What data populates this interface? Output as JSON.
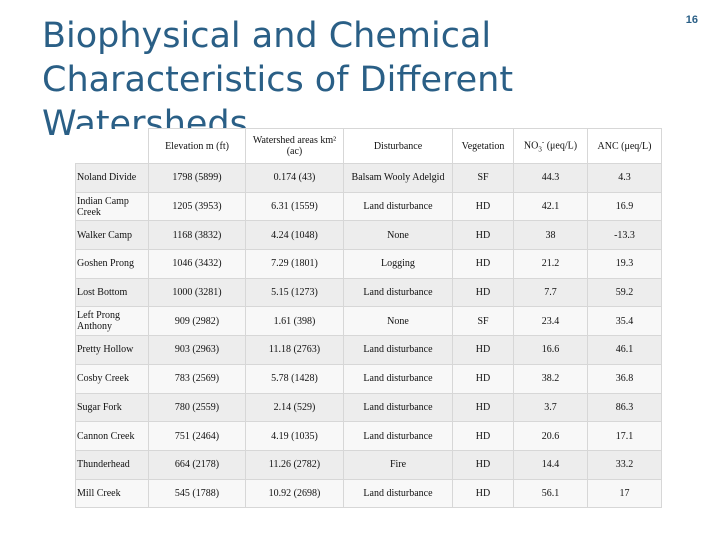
{
  "title": {
    "line1": "Biophysical and Chemical",
    "line2": "Characteristics of  Different Watersheds"
  },
  "page_number": "16",
  "table": {
    "headers": {
      "elevation": "Elevation m (ft)",
      "area": "Watershed areas km² (ac)",
      "disturbance": "Disturbance",
      "vegetation": "Vegetation",
      "no3_main": "NO",
      "no3_sub": "3",
      "no3_sup": "-",
      "no3_unit": " (μeq/L)",
      "anc": "ANC (μeq/L)"
    },
    "rows": [
      {
        "name": "Noland Divide",
        "elevation": "1798 (5899)",
        "area": "0.174 (43)",
        "disturbance": "Balsam Wooly Adelgid",
        "vegetation": "SF",
        "no3": "44.3",
        "anc": "4.3"
      },
      {
        "name": "Indian Camp Creek",
        "elevation": "1205 (3953)",
        "area": "6.31 (1559)",
        "disturbance": "Land disturbance",
        "vegetation": "HD",
        "no3": "42.1",
        "anc": "16.9"
      },
      {
        "name": "Walker Camp",
        "elevation": "1168 (3832)",
        "area": "4.24 (1048)",
        "disturbance": "None",
        "vegetation": "HD",
        "no3": "38",
        "anc": "-13.3"
      },
      {
        "name": "Goshen Prong",
        "elevation": "1046 (3432)",
        "area": "7.29 (1801)",
        "disturbance": "Logging",
        "vegetation": "HD",
        "no3": "21.2",
        "anc": "19.3"
      },
      {
        "name": "Lost Bottom",
        "elevation": "1000 (3281)",
        "area": "5.15 (1273)",
        "disturbance": "Land disturbance",
        "vegetation": "HD",
        "no3": "7.7",
        "anc": "59.2"
      },
      {
        "name": "Left Prong Anthony",
        "elevation": "909 (2982)",
        "area": "1.61 (398)",
        "disturbance": "None",
        "vegetation": "SF",
        "no3": "23.4",
        "anc": "35.4"
      },
      {
        "name": "Pretty Hollow",
        "elevation": "903 (2963)",
        "area": "11.18 (2763)",
        "disturbance": "Land disturbance",
        "vegetation": "HD",
        "no3": "16.6",
        "anc": "46.1"
      },
      {
        "name": "Cosby Creek",
        "elevation": "783 (2569)",
        "area": "5.78 (1428)",
        "disturbance": "Land disturbance",
        "vegetation": "HD",
        "no3": "38.2",
        "anc": "36.8"
      },
      {
        "name": "Sugar Fork",
        "elevation": "780 (2559)",
        "area": "2.14 (529)",
        "disturbance": "Land disturbance",
        "vegetation": "HD",
        "no3": "3.7",
        "anc": "86.3"
      },
      {
        "name": "Cannon Creek",
        "elevation": "751 (2464)",
        "area": "4.19 (1035)",
        "disturbance": "Land disturbance",
        "vegetation": "HD",
        "no3": "20.6",
        "anc": "17.1"
      },
      {
        "name": "Thunderhead",
        "elevation": "664 (2178)",
        "area": "11.26 (2782)",
        "disturbance": "Fire",
        "vegetation": "HD",
        "no3": "14.4",
        "anc": "33.2"
      },
      {
        "name": "Mill Creek",
        "elevation": "545 (1788)",
        "area": "10.92 (2698)",
        "disturbance": "Land disturbance",
        "vegetation": "HD",
        "no3": "56.1",
        "anc": "17"
      }
    ]
  }
}
